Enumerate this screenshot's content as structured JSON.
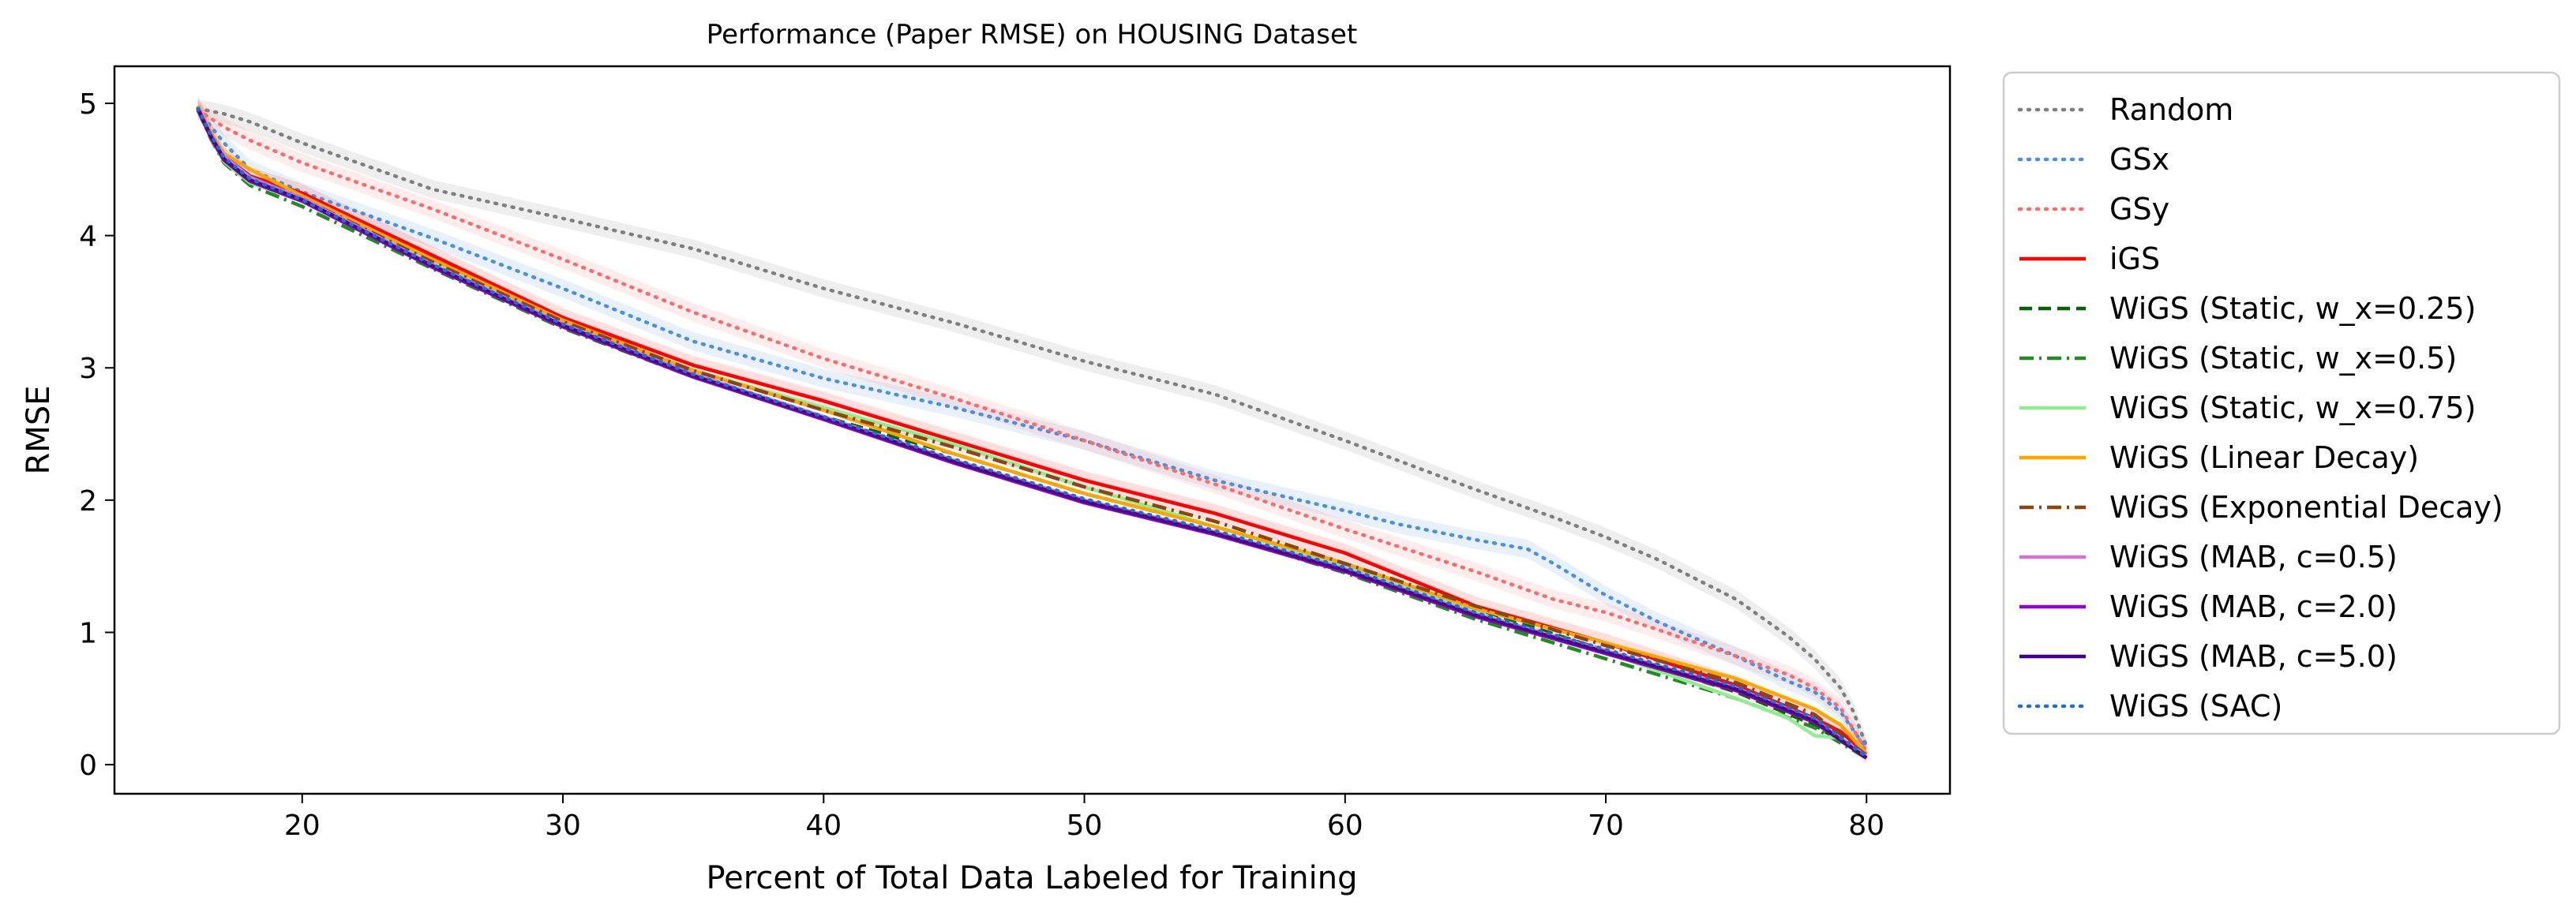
{
  "chart_data": {
    "type": "line",
    "title": "Performance (Paper RMSE) on HOUSING Dataset",
    "xlabel": "Percent of Total Data Labeled for Training",
    "ylabel": "RMSE",
    "xlim": [
      12.8,
      83.2
    ],
    "ylim": [
      -0.22,
      5.28
    ],
    "xticks": [
      20,
      30,
      40,
      50,
      60,
      70,
      80
    ],
    "yticks": [
      0,
      1,
      2,
      3,
      4,
      5
    ],
    "grid": false,
    "legend_position": "outside-right",
    "series": [
      {
        "name": "Random",
        "color": "#7f7f7f",
        "dash": "dotted",
        "band": true,
        "x": [
          16,
          17,
          18,
          20,
          25,
          30,
          35,
          40,
          45,
          50,
          55,
          60,
          65,
          68,
          70,
          72,
          75,
          77,
          78,
          79,
          79.5,
          80
        ],
        "y": [
          4.96,
          4.92,
          4.86,
          4.7,
          4.35,
          4.13,
          3.9,
          3.6,
          3.34,
          3.05,
          2.8,
          2.45,
          2.08,
          1.87,
          1.72,
          1.55,
          1.25,
          0.97,
          0.8,
          0.58,
          0.4,
          0.14
        ]
      },
      {
        "name": "GSx",
        "color": "#4a90e2",
        "dash": "dotted",
        "band": true,
        "x": [
          16,
          17,
          18,
          20,
          25,
          30,
          35,
          40,
          45,
          50,
          55,
          60,
          62,
          65,
          67,
          68,
          70,
          72,
          75,
          77,
          78,
          79,
          80
        ],
        "y": [
          4.95,
          4.7,
          4.5,
          4.33,
          3.98,
          3.6,
          3.2,
          2.92,
          2.7,
          2.45,
          2.15,
          1.92,
          1.82,
          1.7,
          1.63,
          1.52,
          1.28,
          1.08,
          0.82,
          0.63,
          0.55,
          0.4,
          0.12
        ]
      },
      {
        "name": "GSy",
        "color": "#ff6b6b",
        "dash": "dotted",
        "band": true,
        "x": [
          16,
          17,
          18,
          20,
          25,
          30,
          35,
          40,
          45,
          50,
          55,
          60,
          65,
          68,
          70,
          72,
          75,
          77,
          78,
          79,
          80
        ],
        "y": [
          4.95,
          4.82,
          4.72,
          4.55,
          4.2,
          3.82,
          3.42,
          3.07,
          2.77,
          2.45,
          2.12,
          1.78,
          1.46,
          1.25,
          1.15,
          1.02,
          0.82,
          0.68,
          0.58,
          0.43,
          0.1
        ]
      },
      {
        "name": "iGS",
        "color": "#ff0000",
        "dash": "solid",
        "band": true,
        "x": [
          16,
          16.5,
          17,
          18,
          20,
          25,
          30,
          35,
          40,
          45,
          50,
          55,
          60,
          65,
          70,
          75,
          78,
          79,
          80
        ],
        "y": [
          4.98,
          4.78,
          4.6,
          4.45,
          4.32,
          3.85,
          3.38,
          3.02,
          2.75,
          2.45,
          2.15,
          1.9,
          1.6,
          1.2,
          0.92,
          0.6,
          0.35,
          0.25,
          0.08
        ]
      },
      {
        "name": "WiGS (Static, w_x=0.25)",
        "color": "#006400",
        "dash": "dashed",
        "band": false,
        "x": [
          16,
          16.5,
          17,
          18,
          20,
          25,
          30,
          35,
          40,
          45,
          50,
          55,
          60,
          65,
          70,
          75,
          78,
          80
        ],
        "y": [
          4.95,
          4.75,
          4.58,
          4.42,
          4.28,
          3.78,
          3.31,
          2.95,
          2.63,
          2.35,
          2.05,
          1.8,
          1.52,
          1.18,
          0.86,
          0.55,
          0.3,
          0.06
        ]
      },
      {
        "name": "WiGS (Static, w_x=0.5)",
        "color": "#228b22",
        "dash": "dashdot",
        "band": false,
        "x": [
          16,
          16.5,
          17,
          18,
          20,
          25,
          30,
          35,
          40,
          45,
          50,
          55,
          60,
          65,
          70,
          75,
          78,
          80
        ],
        "y": [
          4.95,
          4.73,
          4.55,
          4.38,
          4.22,
          3.75,
          3.3,
          2.93,
          2.62,
          2.3,
          2.0,
          1.75,
          1.45,
          1.1,
          0.8,
          0.5,
          0.28,
          0.05
        ]
      },
      {
        "name": "WiGS (Static, w_x=0.75)",
        "color": "#90ee90",
        "dash": "solid",
        "band": false,
        "x": [
          16,
          16.5,
          17,
          18,
          20,
          25,
          30,
          35,
          40,
          45,
          50,
          55,
          60,
          65,
          70,
          75,
          77,
          78,
          79,
          80
        ],
        "y": [
          4.95,
          4.74,
          4.56,
          4.4,
          4.26,
          3.8,
          3.34,
          2.98,
          2.7,
          2.42,
          2.1,
          1.8,
          1.5,
          1.15,
          0.85,
          0.5,
          0.35,
          0.22,
          0.2,
          0.05
        ]
      },
      {
        "name": "WiGS (Linear Decay)",
        "color": "#ffa500",
        "dash": "solid",
        "band": false,
        "x": [
          16,
          16.5,
          17,
          18,
          20,
          25,
          30,
          35,
          40,
          45,
          50,
          55,
          60,
          65,
          70,
          75,
          78,
          79,
          80
        ],
        "y": [
          4.98,
          4.78,
          4.62,
          4.5,
          4.3,
          3.82,
          3.36,
          2.98,
          2.68,
          2.35,
          2.05,
          1.8,
          1.52,
          1.18,
          0.92,
          0.65,
          0.42,
          0.3,
          0.08
        ]
      },
      {
        "name": "WiGS (Exponential Decay)",
        "color": "#8b4513",
        "dash": "dashdot",
        "band": false,
        "x": [
          16,
          16.5,
          17,
          18,
          20,
          25,
          30,
          35,
          40,
          45,
          50,
          55,
          60,
          65,
          70,
          75,
          78,
          80
        ],
        "y": [
          4.96,
          4.76,
          4.6,
          4.45,
          4.28,
          3.8,
          3.35,
          2.98,
          2.68,
          2.4,
          2.1,
          1.84,
          1.52,
          1.2,
          0.9,
          0.62,
          0.38,
          0.07
        ]
      },
      {
        "name": "WiGS (MAB, c=0.5)",
        "color": "#da70d6",
        "dash": "solid",
        "band": false,
        "x": [
          16,
          16.5,
          17,
          18,
          20,
          25,
          30,
          35,
          40,
          45,
          50,
          55,
          60,
          65,
          70,
          75,
          78,
          80
        ],
        "y": [
          4.97,
          4.76,
          4.6,
          4.44,
          4.28,
          3.78,
          3.33,
          2.95,
          2.63,
          2.3,
          2.0,
          1.76,
          1.48,
          1.14,
          0.86,
          0.58,
          0.34,
          0.06
        ]
      },
      {
        "name": "WiGS (MAB, c=2.0)",
        "color": "#9400d3",
        "dash": "solid",
        "band": false,
        "x": [
          16,
          16.5,
          17,
          18,
          20,
          25,
          30,
          35,
          40,
          45,
          50,
          55,
          60,
          65,
          70,
          75,
          78,
          80
        ],
        "y": [
          4.95,
          4.74,
          4.57,
          4.41,
          4.26,
          3.76,
          3.31,
          2.93,
          2.61,
          2.28,
          1.98,
          1.74,
          1.46,
          1.12,
          0.84,
          0.56,
          0.32,
          0.05
        ]
      },
      {
        "name": "WiGS (MAB, c=5.0)",
        "color": "#4b0082",
        "dash": "solid",
        "band": false,
        "x": [
          16,
          16.5,
          17,
          18,
          20,
          25,
          30,
          35,
          40,
          45,
          50,
          55,
          60,
          65,
          70,
          75,
          78,
          80
        ],
        "y": [
          4.96,
          4.75,
          4.58,
          4.42,
          4.27,
          3.77,
          3.32,
          2.94,
          2.62,
          2.29,
          1.99,
          1.75,
          1.47,
          1.13,
          0.85,
          0.57,
          0.33,
          0.05
        ]
      },
      {
        "name": "WiGS (SAC)",
        "color": "#1f6fd0",
        "dash": "dotted",
        "band": false,
        "x": [
          16,
          16.5,
          17,
          18,
          20,
          25,
          30,
          35,
          40,
          45,
          50,
          55,
          60,
          65,
          70,
          75,
          78,
          80
        ],
        "y": [
          4.96,
          4.76,
          4.59,
          4.43,
          4.27,
          3.78,
          3.33,
          2.95,
          2.63,
          2.31,
          2.01,
          1.77,
          1.49,
          1.15,
          0.87,
          0.59,
          0.35,
          0.06
        ]
      }
    ]
  }
}
